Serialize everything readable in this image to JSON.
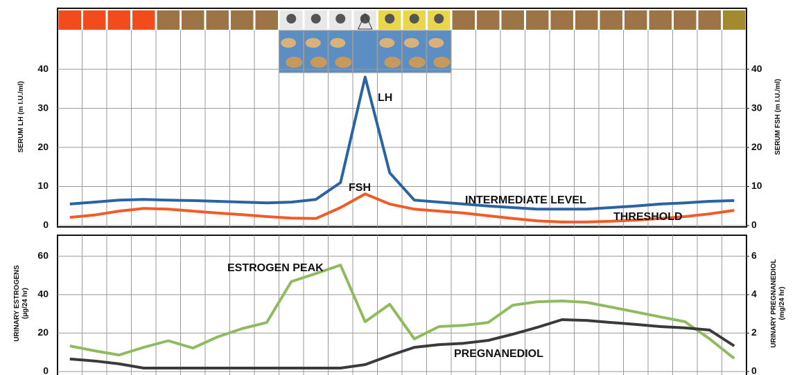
{
  "chart_data": [
    {
      "type": "line",
      "ylabel": [
        "SERUM LH (m I.U./ml)"
      ],
      "y2label": [
        "SERUM FSH (m I.U./ml)"
      ],
      "categories": [
        null,
        null,
        null,
        null,
        null,
        null,
        null,
        null,
        null,
        null,
        null,
        null,
        null,
        null,
        null,
        null,
        null,
        null,
        null,
        null,
        null,
        null,
        null,
        null,
        null,
        null,
        null,
        null
      ],
      "ylim": [
        0,
        55.6
      ],
      "yticks": [
        0,
        10,
        20,
        30,
        40
      ],
      "y2lim": [
        0,
        55.6
      ],
      "y2ticks": [
        0,
        10,
        20,
        30,
        40
      ],
      "grid": true,
      "series": [
        {
          "name": "LH",
          "color": "#2a63a3",
          "values": [
            5.5,
            6,
            6.5,
            6.7,
            6.5,
            6.4,
            6.2,
            6,
            5.8,
            6,
            6.7,
            11,
            38,
            13.5,
            6.5,
            6,
            5.5,
            5,
            4.6,
            4.2,
            4.2,
            4.2,
            4.6,
            5,
            5.5,
            5.8,
            6.2,
            6.4
          ]
        },
        {
          "name": "FSH",
          "color": "#f25a26",
          "axis": "y2",
          "values": [
            2.1,
            2.7,
            3.7,
            4.4,
            4.2,
            3.7,
            3.2,
            2.8,
            2.3,
            1.9,
            1.8,
            4.6,
            8.1,
            5.5,
            4.2,
            3.7,
            3.2,
            2.5,
            1.8,
            1.2,
            0.9,
            0.9,
            1.1,
            1.4,
            1.8,
            2.3,
            3,
            3.9
          ]
        }
      ],
      "annotations": [
        "INTERMEDIATE LEVEL",
        "THRESHOLD"
      ]
    },
    {
      "type": "line",
      "ylabel": [
        "URINARY ESTROGENS",
        "(µg/24 hr)"
      ],
      "y2label": [
        "URINARY PREGNANEDIOL",
        "(mg/24 hr)"
      ],
      "categories": [
        null,
        null,
        null,
        null,
        null,
        null,
        null,
        null,
        null,
        null,
        null,
        null,
        null,
        null,
        null,
        null,
        null,
        null,
        null,
        null,
        null,
        null,
        null,
        null,
        null,
        null,
        null,
        null
      ],
      "ylim": [
        0,
        70.9
      ],
      "yticks": [
        0,
        20,
        40,
        60
      ],
      "y2lim": [
        0,
        7.09
      ],
      "y2ticks": [
        0,
        2,
        4,
        6
      ],
      "grid": true,
      "series": [
        {
          "color": "#8dbb5e",
          "values": [
            13.3,
            10.8,
            8.6,
            12.6,
            16,
            12.2,
            18,
            22.3,
            25.5,
            46.8,
            51,
            55.4,
            25.9,
            35,
            17,
            23.4,
            24,
            25.5,
            34.5,
            36.3,
            36.7,
            36,
            33.5,
            31,
            28.4,
            25.9,
            17,
            6.8
          ]
        },
        {
          "name": "PREGNANEDIOL",
          "color": "#3a3a3a",
          "axis": "y2",
          "values": [
            0.65,
            0.55,
            0.4,
            0.18,
            0.18,
            0.18,
            0.18,
            0.18,
            0.18,
            0.18,
            0.18,
            0.18,
            0.36,
            0.83,
            1.26,
            1.4,
            1.47,
            1.62,
            1.94,
            2.3,
            2.7,
            2.66,
            2.55,
            2.45,
            2.34,
            2.27,
            2.16,
            1.33
          ]
        }
      ],
      "annotations": [
        "ESTROGEN PEAK"
      ]
    }
  ]
}
